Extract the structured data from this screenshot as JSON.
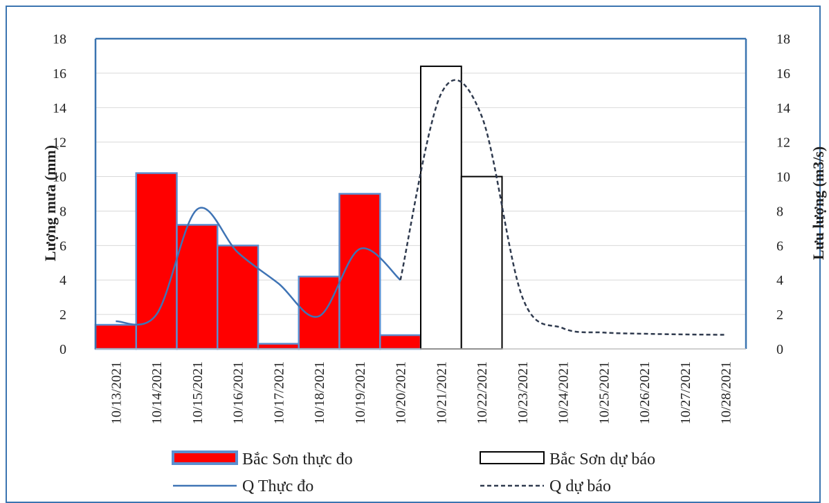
{
  "chart_data": {
    "type": "bar",
    "categories": [
      "10/13/2021",
      "10/14/2021",
      "10/15/2021",
      "10/16/2021",
      "10/17/2021",
      "10/18/2021",
      "10/19/2021",
      "10/20/2021",
      "10/21/2021",
      "10/22/2021",
      "10/23/2021",
      "10/24/2021",
      "10/25/2021",
      "10/26/2021",
      "10/27/2021",
      "10/28/2021"
    ],
    "ylabel": "Lượng mưa (mm)",
    "y2label": "Lưu lượng (m3/s)",
    "ylim": [
      0,
      18
    ],
    "y2lim": [
      0,
      18
    ],
    "yticks": [
      "0",
      "2",
      "4",
      "6",
      "8",
      "10",
      "12",
      "14",
      "16",
      "18"
    ],
    "grid": true,
    "legend_position": "bottom",
    "series": [
      {
        "name": "Bắc Sơn thực đo",
        "kind": "bar",
        "color": "#ff0000",
        "edge": "#5b8fd0",
        "values": [
          1.4,
          10.2,
          7.2,
          6.0,
          0.3,
          4.2,
          9.0,
          0.8,
          null,
          null,
          null,
          null,
          null,
          null,
          null,
          null
        ]
      },
      {
        "name": "Bắc Sơn dự báo",
        "kind": "bar",
        "color": "#ffffff",
        "edge": "#000000",
        "values": [
          null,
          null,
          null,
          null,
          null,
          null,
          null,
          null,
          16.4,
          10.0,
          null,
          null,
          null,
          null,
          null,
          null
        ]
      },
      {
        "name": "Q Thực đo",
        "kind": "line",
        "color": "#3f74b5",
        "dash": "solid",
        "x": [
          0.0,
          1.0,
          2.0,
          3.0,
          4.0,
          5.0,
          6.0,
          7.0
        ],
        "values": [
          1.6,
          2.0,
          8.1,
          5.6,
          3.8,
          1.9,
          5.8,
          4.0
        ]
      },
      {
        "name": "Q dự báo",
        "kind": "line",
        "color": "#2f3a4e",
        "dash": "dashed",
        "x": [
          7.0,
          8.0,
          9.0,
          10.0,
          11.0,
          12.0,
          13.0,
          14.0,
          15.0
        ],
        "values": [
          4.0,
          14.8,
          13.5,
          3.0,
          1.2,
          0.95,
          0.88,
          0.84,
          0.82
        ]
      }
    ]
  }
}
